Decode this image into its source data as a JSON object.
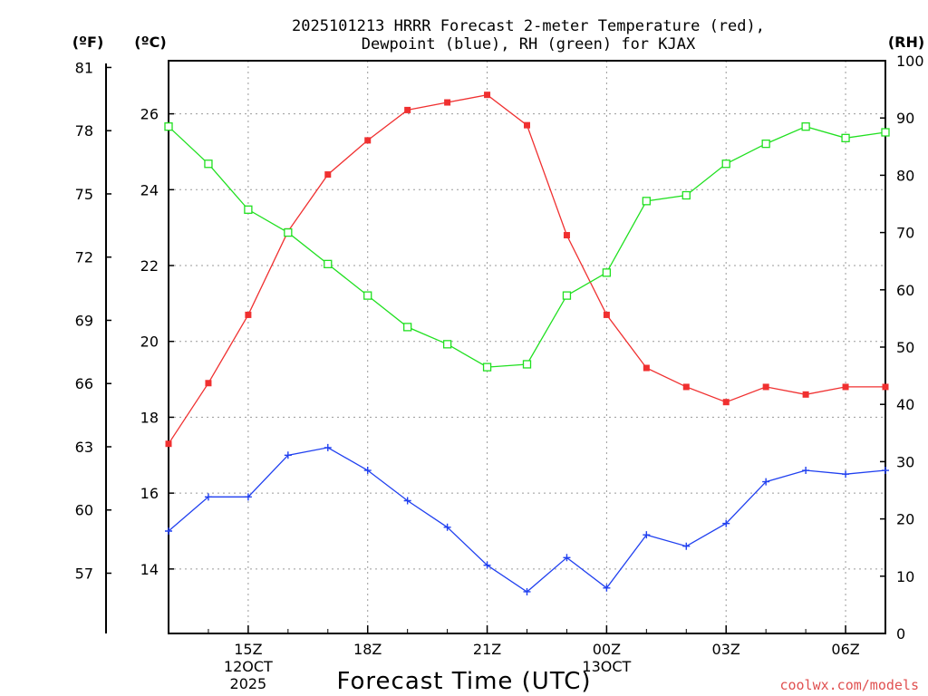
{
  "chart_data": {
    "type": "line",
    "title_lines": [
      "2025101213 HRRR Forecast 2-meter Temperature (red),",
      "Dewpoint (blue), RH (green) for KJAX"
    ],
    "xlabel": "Forecast Time (UTC)",
    "watermark": "coolwx.com/models",
    "units": {
      "fahrenheit": "(ºF)",
      "celsius": "(ºC)",
      "rh": "(RH)"
    },
    "x": [
      13,
      14,
      15,
      16,
      17,
      18,
      19,
      20,
      21,
      22,
      23,
      24,
      25,
      26,
      27,
      28,
      29,
      30,
      31
    ],
    "xlim": [
      13,
      31
    ],
    "x_ticks": [
      {
        "x": 15,
        "lines": [
          "15Z",
          "12OCT",
          "2025"
        ]
      },
      {
        "x": 18,
        "lines": [
          "18Z"
        ]
      },
      {
        "x": 21,
        "lines": [
          "21Z"
        ]
      },
      {
        "x": 24,
        "lines": [
          "00Z",
          "13OCT"
        ]
      },
      {
        "x": 27,
        "lines": [
          "03Z"
        ]
      },
      {
        "x": 30,
        "lines": [
          "06Z"
        ]
      }
    ],
    "celsius_axis": {
      "ylim": [
        12.3,
        27.4
      ],
      "ticks": [
        "14",
        "16",
        "18",
        "20",
        "22",
        "24",
        "26"
      ]
    },
    "fahrenheit_axis": {
      "ticks": [
        "57",
        "60",
        "63",
        "66",
        "69",
        "72",
        "75",
        "78",
        "81"
      ]
    },
    "rh_axis": {
      "ylim": [
        0,
        100
      ],
      "ticks": [
        "0",
        "10",
        "20",
        "30",
        "40",
        "50",
        "60",
        "70",
        "80",
        "90",
        "100"
      ]
    },
    "series": [
      {
        "name": "2-meter Temperature",
        "axis": "celsius",
        "color": "#f03030",
        "marker": "filled-square",
        "values": [
          17.3,
          18.9,
          20.7,
          22.9,
          24.4,
          25.3,
          26.1,
          26.3,
          26.5,
          25.7,
          22.8,
          20.7,
          19.3,
          18.8,
          18.4,
          18.8,
          18.6,
          18.8,
          18.8
        ]
      },
      {
        "name": "Dewpoint",
        "axis": "celsius",
        "color": "#2040f0",
        "marker": "plus",
        "values": [
          15.0,
          15.9,
          15.9,
          17.0,
          17.2,
          16.6,
          15.8,
          15.1,
          14.1,
          13.4,
          14.3,
          13.5,
          14.9,
          14.6,
          15.2,
          16.3,
          16.6,
          16.5,
          16.6
        ]
      },
      {
        "name": "RH",
        "axis": "rh",
        "color": "#20e020",
        "marker": "open-square",
        "values": [
          88.5,
          82.0,
          74.0,
          70.0,
          64.5,
          59.0,
          53.5,
          50.5,
          46.5,
          47.0,
          59.0,
          63.0,
          75.5,
          76.5,
          82.0,
          85.5,
          88.5,
          86.5,
          87.5
        ]
      }
    ]
  }
}
